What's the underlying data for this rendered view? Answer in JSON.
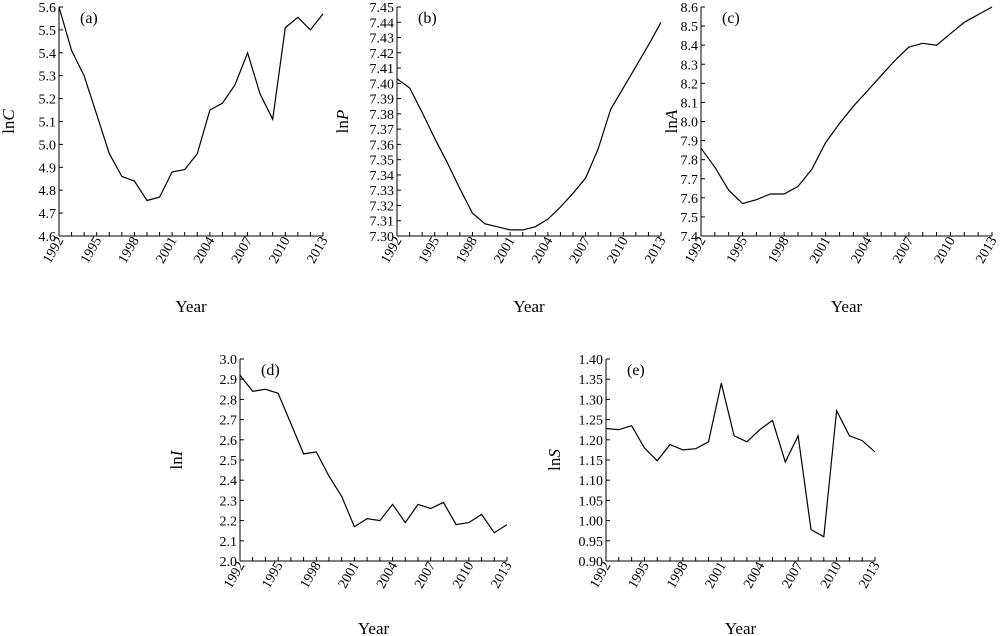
{
  "chart_data": [
    {
      "type": "line",
      "panel_label": "(a)",
      "xlabel": "Year",
      "ylabel_prefix": "ln",
      "ylabel_var": "C",
      "ylim": [
        4.6,
        5.6
      ],
      "yticks": [
        4.6,
        4.7,
        4.8,
        4.9,
        5.0,
        5.1,
        5.2,
        5.3,
        5.4,
        5.5,
        5.6
      ],
      "ytick_decimals": 1,
      "xlim": [
        1992,
        2013
      ],
      "xticks": [
        1992,
        1995,
        1998,
        2001,
        2004,
        2007,
        2010,
        2013
      ],
      "x": [
        1992,
        1993,
        1994,
        1995,
        1996,
        1997,
        1998,
        1999,
        2000,
        2001,
        2002,
        2003,
        2004,
        2005,
        2006,
        2007,
        2008,
        2009,
        2010,
        2011,
        2012,
        2013
      ],
      "values": [
        5.6,
        5.41,
        5.3,
        5.13,
        4.96,
        4.86,
        4.84,
        4.755,
        4.77,
        4.88,
        4.89,
        4.96,
        5.15,
        5.18,
        5.26,
        5.4,
        5.22,
        5.11,
        5.51,
        5.555,
        5.5,
        5.57
      ]
    },
    {
      "type": "line",
      "panel_label": "(b)",
      "xlabel": "Year",
      "ylabel_prefix": "ln",
      "ylabel_var": "P",
      "ylim": [
        7.3,
        7.45
      ],
      "yticks": [
        7.3,
        7.31,
        7.32,
        7.33,
        7.34,
        7.35,
        7.36,
        7.37,
        7.38,
        7.39,
        7.4,
        7.41,
        7.42,
        7.43,
        7.44,
        7.45
      ],
      "ytick_decimals": 2,
      "xlim": [
        1992,
        2013
      ],
      "xticks": [
        1992,
        1995,
        1998,
        2001,
        2004,
        2007,
        2010,
        2013
      ],
      "x": [
        1992,
        1993,
        1994,
        1995,
        1996,
        1997,
        1998,
        1999,
        2000,
        2001,
        2002,
        2003,
        2004,
        2005,
        2006,
        2007,
        2008,
        2009,
        2010,
        2011,
        2012,
        2013
      ],
      "values": [
        7.403,
        7.397,
        7.381,
        7.364,
        7.348,
        7.331,
        7.315,
        7.308,
        7.306,
        7.304,
        7.304,
        7.306,
        7.311,
        7.319,
        7.328,
        7.338,
        7.357,
        7.383,
        7.397,
        7.411,
        7.425,
        7.44
      ]
    },
    {
      "type": "line",
      "panel_label": "(c)",
      "xlabel": "Year",
      "ylabel_prefix": "ln",
      "ylabel_var": "A",
      "ylim": [
        7.4,
        8.6
      ],
      "yticks": [
        7.4,
        7.5,
        7.6,
        7.7,
        7.8,
        7.9,
        8.0,
        8.1,
        8.2,
        8.3,
        8.4,
        8.5,
        8.6
      ],
      "ytick_decimals": 1,
      "xlim": [
        1992,
        2013
      ],
      "xticks": [
        1992,
        1995,
        1998,
        2001,
        2004,
        2007,
        2010,
        2013
      ],
      "x": [
        1992,
        1993,
        1994,
        1995,
        1996,
        1997,
        1998,
        1999,
        2000,
        2001,
        2002,
        2003,
        2004,
        2005,
        2006,
        2007,
        2008,
        2009,
        2010,
        2011,
        2012,
        2013
      ],
      "values": [
        7.86,
        7.76,
        7.64,
        7.57,
        7.59,
        7.62,
        7.62,
        7.66,
        7.75,
        7.89,
        7.99,
        8.08,
        8.16,
        8.24,
        8.32,
        8.39,
        8.41,
        8.4,
        8.46,
        8.52,
        8.56,
        8.6
      ]
    },
    {
      "type": "line",
      "panel_label": "(d)",
      "xlabel": "Year",
      "ylabel_prefix": "ln",
      "ylabel_var": "I",
      "ylim": [
        2.0,
        3.0
      ],
      "yticks": [
        2.0,
        2.1,
        2.2,
        2.3,
        2.4,
        2.5,
        2.6,
        2.7,
        2.8,
        2.9,
        3.0
      ],
      "ytick_decimals": 1,
      "xlim": [
        1992,
        2013
      ],
      "xticks": [
        1992,
        1995,
        1998,
        2001,
        2004,
        2007,
        2010,
        2013
      ],
      "x": [
        1992,
        1993,
        1994,
        1995,
        1996,
        1997,
        1998,
        1999,
        2000,
        2001,
        2002,
        2003,
        2004,
        2005,
        2006,
        2007,
        2008,
        2009,
        2010,
        2011,
        2012,
        2013
      ],
      "values": [
        2.92,
        2.84,
        2.85,
        2.83,
        2.68,
        2.53,
        2.54,
        2.42,
        2.32,
        2.17,
        2.21,
        2.2,
        2.28,
        2.19,
        2.28,
        2.26,
        2.29,
        2.18,
        2.19,
        2.23,
        2.14,
        2.18
      ]
    },
    {
      "type": "line",
      "panel_label": "(e)",
      "xlabel": "Year",
      "ylabel_prefix": "ln",
      "ylabel_var": "S",
      "ylim": [
        0.9,
        1.4
      ],
      "yticks": [
        0.9,
        0.95,
        1.0,
        1.05,
        1.1,
        1.15,
        1.2,
        1.25,
        1.3,
        1.35,
        1.4
      ],
      "ytick_decimals": 2,
      "xlim": [
        1992,
        2013
      ],
      "xticks": [
        1992,
        1995,
        1998,
        2001,
        2004,
        2007,
        2010,
        2013
      ],
      "x": [
        1992,
        1993,
        1994,
        1995,
        1996,
        1997,
        1998,
        1999,
        2000,
        2001,
        2002,
        2003,
        2004,
        2005,
        2006,
        2007,
        2008,
        2009,
        2010,
        2011,
        2012,
        2013
      ],
      "values": [
        1.228,
        1.225,
        1.235,
        1.18,
        1.148,
        1.188,
        1.175,
        1.178,
        1.195,
        1.34,
        1.21,
        1.195,
        1.225,
        1.248,
        1.145,
        1.21,
        0.978,
        0.96,
        1.272,
        1.21,
        1.198,
        1.17
      ]
    }
  ]
}
